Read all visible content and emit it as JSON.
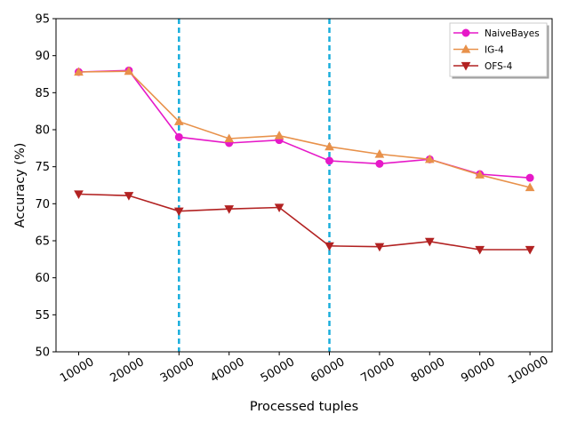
{
  "chart_data": {
    "type": "line",
    "title": "",
    "xlabel": "Processed tuples",
    "ylabel": "Accuracy (%)",
    "x": [
      10000,
      20000,
      30000,
      40000,
      50000,
      60000,
      70000,
      80000,
      90000,
      100000
    ],
    "x_tick_labels": [
      "10000",
      "20000",
      "30000",
      "40000",
      "50000",
      "60000",
      "70000",
      "80000",
      "90000",
      "100000"
    ],
    "ylim": [
      50,
      95
    ],
    "y_ticks": [
      50,
      55,
      60,
      65,
      70,
      75,
      80,
      85,
      90,
      95
    ],
    "y_tick_labels": [
      "50",
      "55",
      "60",
      "65",
      "70",
      "75",
      "80",
      "85",
      "90",
      "95"
    ],
    "grid": false,
    "legend_position": "top-right",
    "series": [
      {
        "name": "NaiveBayes",
        "color": "#e619c8",
        "marker": "circle",
        "values": [
          87.8,
          88.0,
          79.0,
          78.2,
          78.6,
          75.8,
          75.4,
          76.0,
          74.0,
          73.5
        ]
      },
      {
        "name": "IG-4",
        "color": "#e8914a",
        "marker": "triangle-up",
        "values": [
          87.8,
          87.9,
          81.1,
          78.8,
          79.2,
          77.7,
          76.7,
          76.0,
          73.9,
          72.2
        ]
      },
      {
        "name": "OFS-4",
        "color": "#b22222",
        "marker": "triangle-down",
        "values": [
          71.3,
          71.1,
          69.0,
          69.3,
          69.5,
          64.3,
          64.2,
          64.9,
          63.8,
          63.8
        ]
      }
    ],
    "vertical_lines": [
      {
        "x": 30000,
        "color": "#1aaedc",
        "style": "dashed"
      },
      {
        "x": 60000,
        "color": "#1aaedc",
        "style": "dashed"
      }
    ]
  }
}
